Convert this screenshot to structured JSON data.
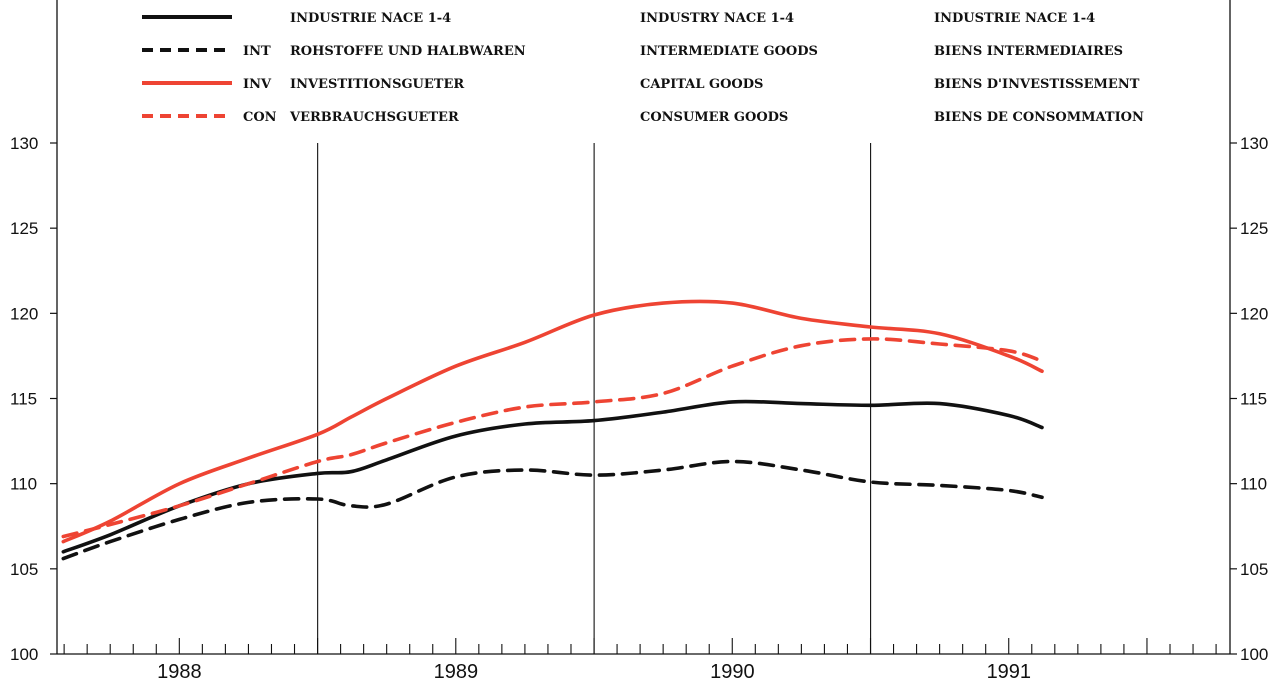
{
  "chart_data": {
    "type": "line",
    "ylim": [
      100,
      130
    ],
    "yticks": [
      "100",
      "105",
      "110",
      "115",
      "120",
      "125",
      "130"
    ],
    "xlim": [
      1987.55,
      1991.8
    ],
    "years": [
      "1988",
      "1989",
      "1990",
      "1991"
    ],
    "legend": [
      {
        "code": "",
        "de": "INDUSTRIE NACE 1-4",
        "en": "INDUSTRY NACE 1-4",
        "fr": "INDUSTRIE NACE 1-4",
        "color": "#111111",
        "dash": false
      },
      {
        "code": "INT",
        "de": "ROHSTOFFE UND HALBWAREN",
        "en": "INTERMEDIATE GOODS",
        "fr": "BIENS INTERMEDIAIRES",
        "color": "#111111",
        "dash": true
      },
      {
        "code": "INV",
        "de": "INVESTITIONSGUETER",
        "en": "CAPITAL GOODS",
        "fr": "BIENS D'INVESTISSEMENT",
        "color": "#ee4433",
        "dash": false
      },
      {
        "code": "CON",
        "de": "VERBRAUCHSGUETER",
        "en": "CONSUMER GOODS",
        "fr": "BIENS DE CONSOMMATION",
        "color": "#ee4433",
        "dash": true
      }
    ],
    "x": [
      1987.58,
      1987.75,
      1988.0,
      1988.25,
      1988.5,
      1988.62,
      1988.75,
      1989.0,
      1989.25,
      1989.5,
      1989.75,
      1990.0,
      1990.25,
      1990.5,
      1990.75,
      1991.0,
      1991.12
    ],
    "series": [
      {
        "values": [
          106.0,
          107.0,
          108.7,
          110.0,
          110.6,
          110.7,
          111.4,
          112.8,
          113.5,
          113.7,
          114.2,
          114.8,
          114.7,
          114.6,
          114.7,
          114.0,
          113.3
        ]
      },
      {
        "values": [
          105.6,
          106.6,
          107.9,
          108.9,
          109.1,
          108.7,
          108.8,
          110.4,
          110.8,
          110.5,
          110.8,
          111.3,
          110.8,
          110.1,
          109.9,
          109.6,
          109.2
        ]
      },
      {
        "values": [
          106.6,
          107.8,
          110.0,
          111.5,
          112.9,
          113.9,
          115.0,
          116.9,
          118.3,
          119.9,
          120.6,
          120.6,
          119.7,
          119.2,
          118.8,
          117.5,
          116.6
        ]
      },
      {
        "values": [
          106.9,
          107.6,
          108.7,
          110.0,
          111.3,
          111.7,
          112.4,
          113.6,
          114.5,
          114.8,
          115.3,
          116.9,
          118.1,
          118.5,
          118.2,
          117.8,
          117.2
        ]
      }
    ]
  }
}
